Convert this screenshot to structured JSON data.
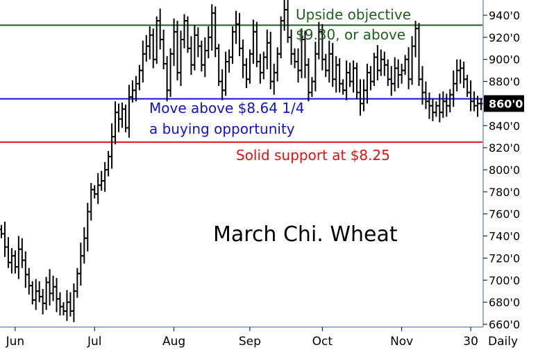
{
  "chart_data": {
    "type": "ohlc-bar",
    "title": "March Chi. Wheat",
    "period_label": "Daily",
    "y_axis": {
      "ylim": [
        660,
        950
      ],
      "ticks": [
        660,
        680,
        700,
        720,
        740,
        760,
        780,
        800,
        820,
        840,
        860,
        880,
        900,
        920,
        940
      ],
      "tick_labels": [
        "660'0",
        "680'0",
        "700'0",
        "720'0",
        "740'0",
        "760'0",
        "780'0",
        "800'0",
        "820'0",
        "840'0",
        "860'0",
        "880'0",
        "900'0",
        "920'0",
        "940'0"
      ],
      "side": "right"
    },
    "x_axis": {
      "labels": [
        {
          "text": "Jun",
          "bar": 4
        },
        {
          "text": "Jul",
          "bar": 27
        },
        {
          "text": "Aug",
          "bar": 50
        },
        {
          "text": "Sep",
          "bar": 72
        },
        {
          "text": "Oct",
          "bar": 93
        },
        {
          "text": "Nov",
          "bar": 116
        },
        {
          "text": "30",
          "bar": 136
        }
      ]
    },
    "last_price": {
      "value": 860,
      "label": "860'0"
    },
    "reference_lines": [
      {
        "name": "upside-objective-line",
        "value": 931,
        "color": "#1e5e1e"
      },
      {
        "name": "buy-trigger-line",
        "value": 864.25,
        "color": "#1010d0"
      },
      {
        "name": "support-line",
        "value": 825,
        "color": "#e01010"
      }
    ],
    "annotations": {
      "objective_line1": "Upside objective",
      "objective_line2": "$9.30, or above",
      "buy_line1": "Move above $8.64 1/4",
      "buy_line2": "a buying opportunity",
      "support": "Solid support at $8.25"
    },
    "colors": {
      "bars": "#000000",
      "axis": "#9aaed8",
      "objective": "#1e5e1e",
      "buy": "#1010d0",
      "support": "#e01010"
    },
    "closes": [
      742,
      730,
      716,
      722,
      712,
      728,
      718,
      705,
      695,
      682,
      690,
      685,
      679,
      698,
      688,
      694,
      683,
      676,
      672,
      680,
      672,
      690,
      706,
      722,
      738,
      762,
      782,
      778,
      786,
      790,
      800,
      812,
      830,
      852,
      846,
      855,
      838,
      866,
      872,
      878,
      890,
      905,
      912,
      922,
      900,
      935,
      918,
      896,
      872,
      905,
      925,
      888,
      918,
      935,
      910,
      895,
      922,
      912,
      895,
      908,
      920,
      942,
      910,
      880,
      872,
      898,
      902,
      925,
      932,
      910,
      895,
      882,
      905,
      925,
      898,
      888,
      902,
      915,
      880,
      888,
      905,
      935,
      945,
      920,
      905,
      898,
      890,
      918,
      895,
      870,
      880,
      905,
      925,
      900,
      890,
      905,
      882,
      895,
      878,
      872,
      888,
      880,
      892,
      870,
      860,
      872,
      888,
      880,
      902,
      890,
      900,
      895,
      882,
      878,
      892,
      886,
      890,
      900,
      882,
      912,
      928,
      882,
      870,
      862,
      858,
      852,
      858,
      852,
      862,
      858,
      868,
      878,
      890,
      892,
      882,
      870,
      862,
      858,
      860,
      860
    ]
  }
}
